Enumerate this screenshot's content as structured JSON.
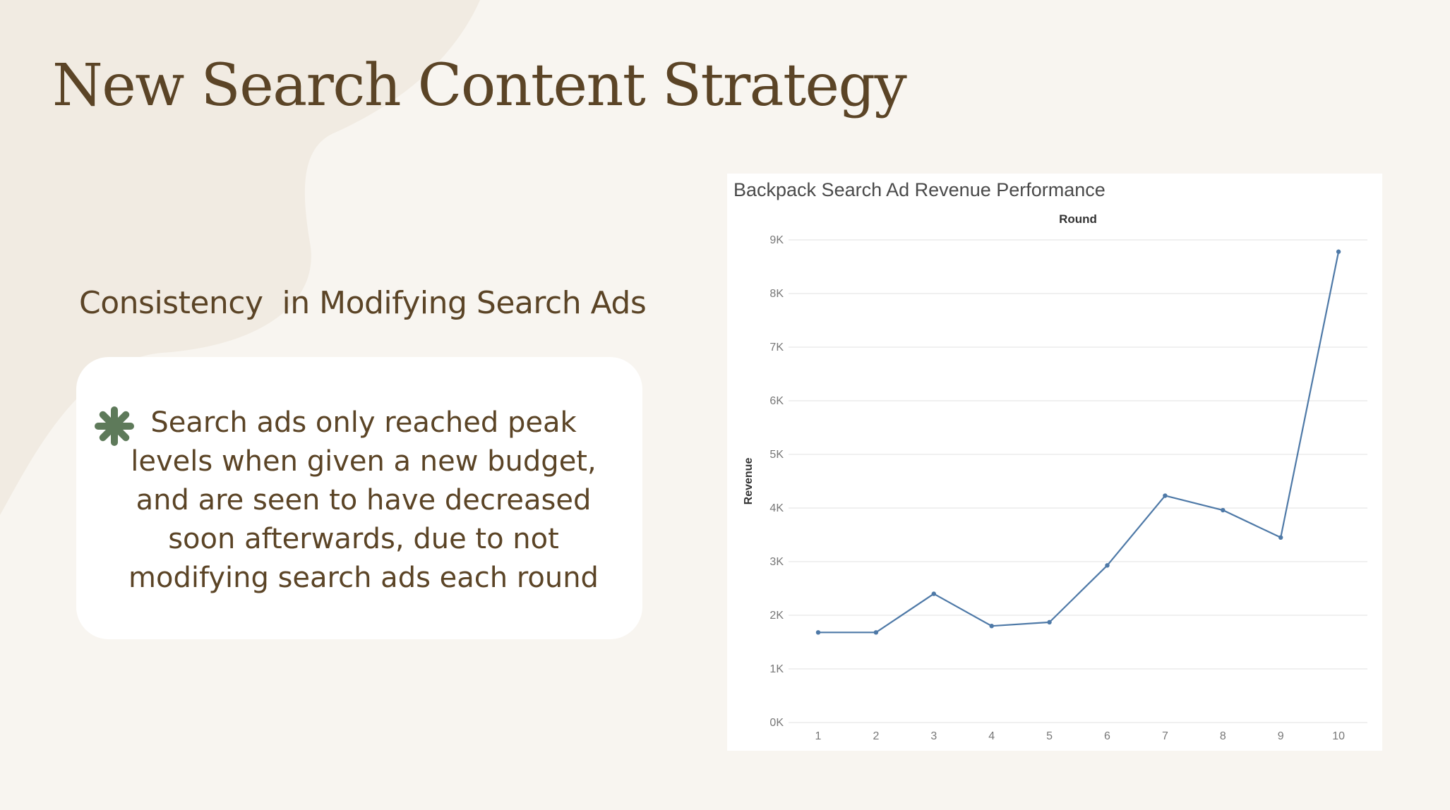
{
  "slide": {
    "title": "New Search Content Strategy",
    "subtitle": "Consistency  in Modifying Search Ads",
    "card_text": "Search ads only reached peak levels when given a new budget, and are seen to have decreased soon afterwards, due to not modifying search ads each round",
    "bullet_icon": "asterisk-icon"
  },
  "colors": {
    "background": "#f8f5f0",
    "blob": "#f1ebe2",
    "text_brown": "#5b4426",
    "icon_green": "#5e7a5a",
    "line": "#4e79a7"
  },
  "chart_data": {
    "type": "line",
    "title": "Backpack Search Ad Revenue Performance",
    "xlabel": "Round",
    "ylabel": "Revenue",
    "x": [
      1,
      2,
      3,
      4,
      5,
      6,
      7,
      8,
      9,
      10
    ],
    "ylim": [
      0,
      9000
    ],
    "yticks": [
      0,
      1000,
      2000,
      3000,
      4000,
      5000,
      6000,
      7000,
      8000,
      9000
    ],
    "ytick_labels": [
      "0K",
      "1K",
      "2K",
      "3K",
      "4K",
      "5K",
      "6K",
      "7K",
      "8K",
      "9K"
    ],
    "series": [
      {
        "values": [
          1680,
          1680,
          2400,
          1800,
          1870,
          2930,
          4230,
          3960,
          3450,
          8780
        ]
      }
    ],
    "grid": true,
    "legend": "none"
  }
}
